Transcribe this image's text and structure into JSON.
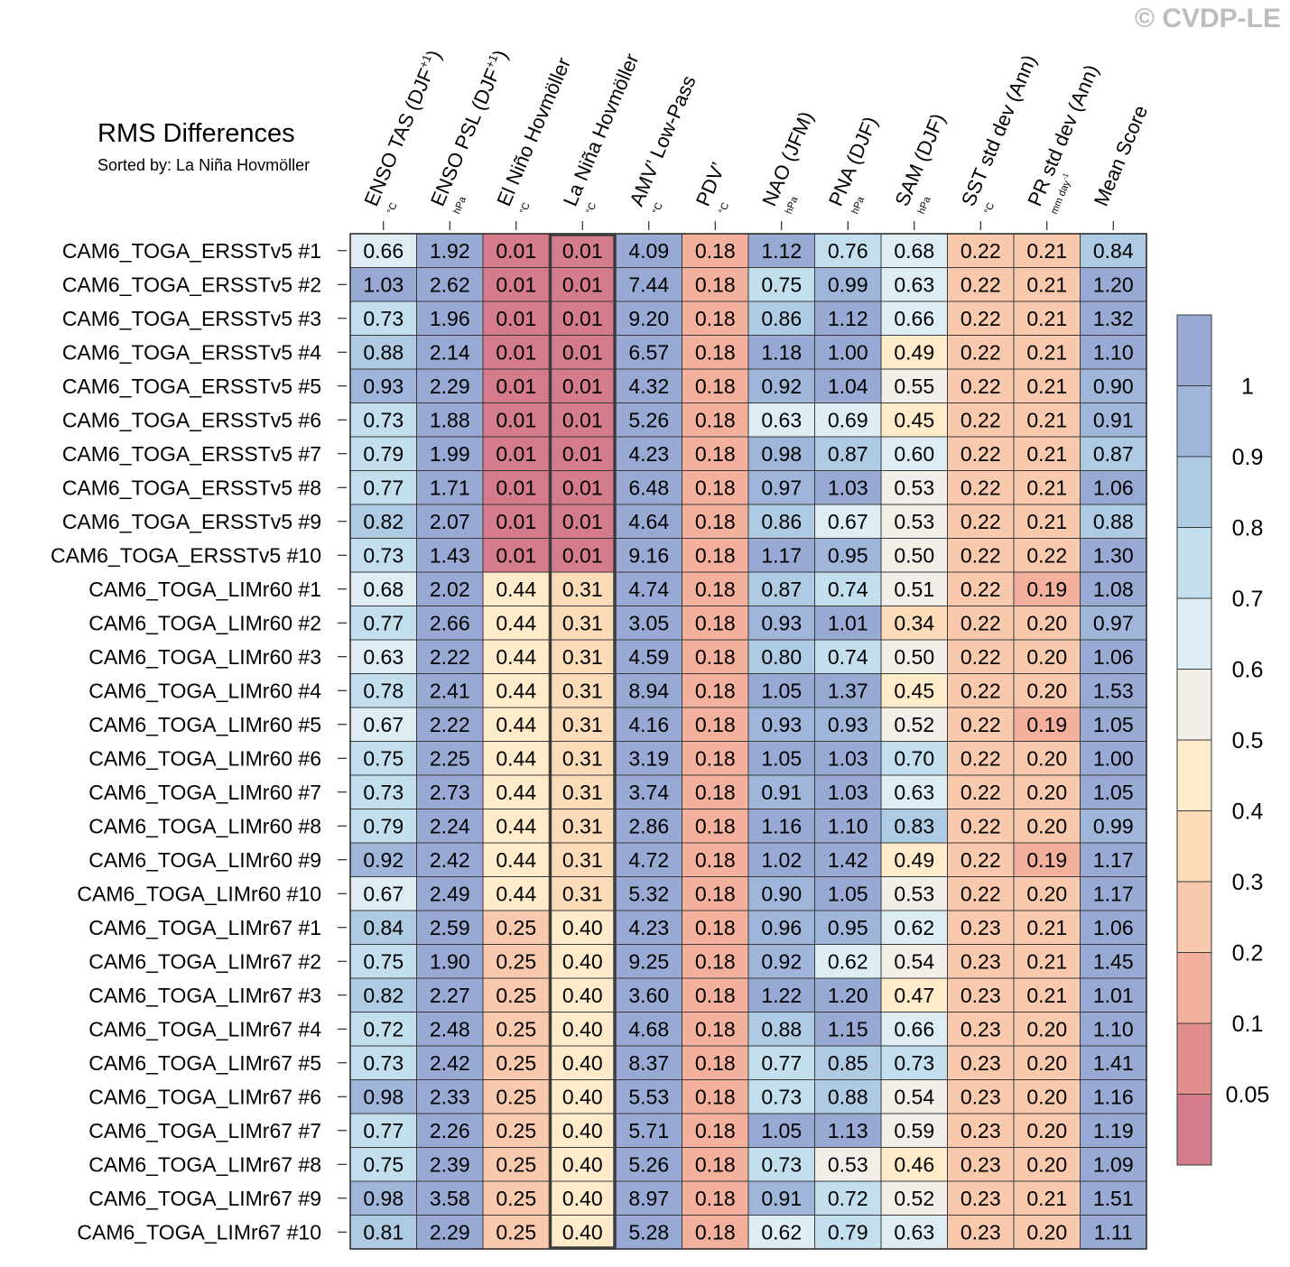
{
  "watermark": "© CVDP-LE",
  "chart_data": {
    "type": "heatmap",
    "title": "RMS Differences",
    "subtitle": "Sorted by: La Niña Hovmöller",
    "highlight_column": 3,
    "columns": [
      {
        "label": "ENSO TAS (DJF",
        "sup": "+1",
        "close": ")",
        "unit": "°C"
      },
      {
        "label": "ENSO PSL (DJF",
        "sup": "+1",
        "close": ")",
        "unit": "hPa"
      },
      {
        "label": "El Niño Hovmöller",
        "unit": "°C"
      },
      {
        "label": "La Niña Hovmöller",
        "unit": "°C"
      },
      {
        "label": "AMV’ Low-Pass",
        "unit": "°C"
      },
      {
        "label": "PDV’",
        "unit": "°C"
      },
      {
        "label": "NAO (JFM)",
        "unit": "hPa"
      },
      {
        "label": "PNA (DJF)",
        "unit": "hPa"
      },
      {
        "label": "SAM (DJF)",
        "unit": "hPa"
      },
      {
        "label": "SST std dev (Ann)",
        "unit": "°C"
      },
      {
        "label": "PR std dev (Ann)",
        "unit": "mm day",
        "unit_sup": "-1"
      },
      {
        "label": "Mean Score",
        "unit": ""
      }
    ],
    "rows": [
      {
        "name": "CAM6_TOGA_ERSSTv5 #1",
        "values": [
          "0.66",
          "1.92",
          "0.01",
          "0.01",
          "4.09",
          "0.18",
          "1.12",
          "0.76",
          "0.68",
          "0.22",
          "0.21",
          "0.84"
        ]
      },
      {
        "name": "CAM6_TOGA_ERSSTv5 #2",
        "values": [
          "1.03",
          "2.62",
          "0.01",
          "0.01",
          "7.44",
          "0.18",
          "0.75",
          "0.99",
          "0.63",
          "0.22",
          "0.21",
          "1.20"
        ]
      },
      {
        "name": "CAM6_TOGA_ERSSTv5 #3",
        "values": [
          "0.73",
          "1.96",
          "0.01",
          "0.01",
          "9.20",
          "0.18",
          "0.86",
          "1.12",
          "0.66",
          "0.22",
          "0.21",
          "1.32"
        ]
      },
      {
        "name": "CAM6_TOGA_ERSSTv5 #4",
        "values": [
          "0.88",
          "2.14",
          "0.01",
          "0.01",
          "6.57",
          "0.18",
          "1.18",
          "1.00",
          "0.49",
          "0.22",
          "0.21",
          "1.10"
        ]
      },
      {
        "name": "CAM6_TOGA_ERSSTv5 #5",
        "values": [
          "0.93",
          "2.29",
          "0.01",
          "0.01",
          "4.32",
          "0.18",
          "0.92",
          "1.04",
          "0.55",
          "0.22",
          "0.21",
          "0.90"
        ]
      },
      {
        "name": "CAM6_TOGA_ERSSTv5 #6",
        "values": [
          "0.73",
          "1.88",
          "0.01",
          "0.01",
          "5.26",
          "0.18",
          "0.63",
          "0.69",
          "0.45",
          "0.22",
          "0.21",
          "0.91"
        ]
      },
      {
        "name": "CAM6_TOGA_ERSSTv5 #7",
        "values": [
          "0.79",
          "1.99",
          "0.01",
          "0.01",
          "4.23",
          "0.18",
          "0.98",
          "0.87",
          "0.60",
          "0.22",
          "0.21",
          "0.87"
        ]
      },
      {
        "name": "CAM6_TOGA_ERSSTv5 #8",
        "values": [
          "0.77",
          "1.71",
          "0.01",
          "0.01",
          "6.48",
          "0.18",
          "0.97",
          "1.03",
          "0.53",
          "0.22",
          "0.21",
          "1.06"
        ]
      },
      {
        "name": "CAM6_TOGA_ERSSTv5 #9",
        "values": [
          "0.82",
          "2.07",
          "0.01",
          "0.01",
          "4.64",
          "0.18",
          "0.86",
          "0.67",
          "0.53",
          "0.22",
          "0.21",
          "0.88"
        ]
      },
      {
        "name": "CAM6_TOGA_ERSSTv5 #10",
        "values": [
          "0.73",
          "1.43",
          "0.01",
          "0.01",
          "9.16",
          "0.18",
          "1.17",
          "0.95",
          "0.50",
          "0.22",
          "0.22",
          "1.30"
        ]
      },
      {
        "name": "CAM6_TOGA_LIMr60 #1",
        "values": [
          "0.68",
          "2.02",
          "0.44",
          "0.31",
          "4.74",
          "0.18",
          "0.87",
          "0.74",
          "0.51",
          "0.22",
          "0.19",
          "1.08"
        ]
      },
      {
        "name": "CAM6_TOGA_LIMr60 #2",
        "values": [
          "0.77",
          "2.66",
          "0.44",
          "0.31",
          "3.05",
          "0.18",
          "0.93",
          "1.01",
          "0.34",
          "0.22",
          "0.20",
          "0.97"
        ]
      },
      {
        "name": "CAM6_TOGA_LIMr60 #3",
        "values": [
          "0.63",
          "2.22",
          "0.44",
          "0.31",
          "4.59",
          "0.18",
          "0.80",
          "0.74",
          "0.50",
          "0.22",
          "0.20",
          "1.06"
        ]
      },
      {
        "name": "CAM6_TOGA_LIMr60 #4",
        "values": [
          "0.78",
          "2.41",
          "0.44",
          "0.31",
          "8.94",
          "0.18",
          "1.05",
          "1.37",
          "0.45",
          "0.22",
          "0.20",
          "1.53"
        ]
      },
      {
        "name": "CAM6_TOGA_LIMr60 #5",
        "values": [
          "0.67",
          "2.22",
          "0.44",
          "0.31",
          "4.16",
          "0.18",
          "0.93",
          "0.93",
          "0.52",
          "0.22",
          "0.19",
          "1.05"
        ]
      },
      {
        "name": "CAM6_TOGA_LIMr60 #6",
        "values": [
          "0.75",
          "2.25",
          "0.44",
          "0.31",
          "3.19",
          "0.18",
          "1.05",
          "1.03",
          "0.70",
          "0.22",
          "0.20",
          "1.00"
        ]
      },
      {
        "name": "CAM6_TOGA_LIMr60 #7",
        "values": [
          "0.73",
          "2.73",
          "0.44",
          "0.31",
          "3.74",
          "0.18",
          "0.91",
          "1.03",
          "0.63",
          "0.22",
          "0.20",
          "1.05"
        ]
      },
      {
        "name": "CAM6_TOGA_LIMr60 #8",
        "values": [
          "0.79",
          "2.24",
          "0.44",
          "0.31",
          "2.86",
          "0.18",
          "1.16",
          "1.10",
          "0.83",
          "0.22",
          "0.20",
          "0.99"
        ]
      },
      {
        "name": "CAM6_TOGA_LIMr60 #9",
        "values": [
          "0.92",
          "2.42",
          "0.44",
          "0.31",
          "4.72",
          "0.18",
          "1.02",
          "1.42",
          "0.49",
          "0.22",
          "0.19",
          "1.17"
        ]
      },
      {
        "name": "CAM6_TOGA_LIMr60 #10",
        "values": [
          "0.67",
          "2.49",
          "0.44",
          "0.31",
          "5.32",
          "0.18",
          "0.90",
          "1.05",
          "0.53",
          "0.22",
          "0.20",
          "1.17"
        ]
      },
      {
        "name": "CAM6_TOGA_LIMr67 #1",
        "values": [
          "0.84",
          "2.59",
          "0.25",
          "0.40",
          "4.23",
          "0.18",
          "0.96",
          "0.95",
          "0.62",
          "0.23",
          "0.21",
          "1.06"
        ]
      },
      {
        "name": "CAM6_TOGA_LIMr67 #2",
        "values": [
          "0.75",
          "1.90",
          "0.25",
          "0.40",
          "9.25",
          "0.18",
          "0.92",
          "0.62",
          "0.54",
          "0.23",
          "0.21",
          "1.45"
        ]
      },
      {
        "name": "CAM6_TOGA_LIMr67 #3",
        "values": [
          "0.82",
          "2.27",
          "0.25",
          "0.40",
          "3.60",
          "0.18",
          "1.22",
          "1.20",
          "0.47",
          "0.23",
          "0.21",
          "1.01"
        ]
      },
      {
        "name": "CAM6_TOGA_LIMr67 #4",
        "values": [
          "0.72",
          "2.48",
          "0.25",
          "0.40",
          "4.68",
          "0.18",
          "0.88",
          "1.15",
          "0.66",
          "0.23",
          "0.20",
          "1.10"
        ]
      },
      {
        "name": "CAM6_TOGA_LIMr67 #5",
        "values": [
          "0.73",
          "2.42",
          "0.25",
          "0.40",
          "8.37",
          "0.18",
          "0.77",
          "0.85",
          "0.73",
          "0.23",
          "0.20",
          "1.41"
        ]
      },
      {
        "name": "CAM6_TOGA_LIMr67 #6",
        "values": [
          "0.98",
          "2.33",
          "0.25",
          "0.40",
          "5.53",
          "0.18",
          "0.73",
          "0.88",
          "0.54",
          "0.23",
          "0.20",
          "1.16"
        ]
      },
      {
        "name": "CAM6_TOGA_LIMr67 #7",
        "values": [
          "0.77",
          "2.26",
          "0.25",
          "0.40",
          "5.71",
          "0.18",
          "1.05",
          "1.13",
          "0.59",
          "0.23",
          "0.20",
          "1.19"
        ]
      },
      {
        "name": "CAM6_TOGA_LIMr67 #8",
        "values": [
          "0.75",
          "2.39",
          "0.25",
          "0.40",
          "5.26",
          "0.18",
          "0.73",
          "0.53",
          "0.46",
          "0.23",
          "0.20",
          "1.09"
        ]
      },
      {
        "name": "CAM6_TOGA_LIMr67 #9",
        "values": [
          "0.98",
          "3.58",
          "0.25",
          "0.40",
          "8.97",
          "0.18",
          "0.91",
          "0.72",
          "0.52",
          "0.23",
          "0.21",
          "1.51"
        ]
      },
      {
        "name": "CAM6_TOGA_LIMr67 #10",
        "values": [
          "0.81",
          "2.29",
          "0.25",
          "0.40",
          "5.28",
          "0.18",
          "0.62",
          "0.79",
          "0.63",
          "0.23",
          "0.20",
          "1.11"
        ]
      }
    ],
    "colorbar": {
      "tick_labels": [
        "0.05",
        "0.1",
        "0.2",
        "0.3",
        "0.4",
        "0.5",
        "0.6",
        "0.7",
        "0.8",
        "0.9",
        "1"
      ],
      "thresholds": [
        0.05,
        0.1,
        0.2,
        0.3,
        0.4,
        0.5,
        0.6,
        0.7,
        0.8,
        0.9,
        1
      ],
      "colors": [
        "#d47b8c",
        "#e18e8c",
        "#f3b09c",
        "#f8c9ac",
        "#fbdbb8",
        "#fdebc9",
        "#f1efe8",
        "#ddedf3",
        "#c3dfed",
        "#aecbe3",
        "#9fb6da",
        "#98aad4"
      ]
    }
  }
}
